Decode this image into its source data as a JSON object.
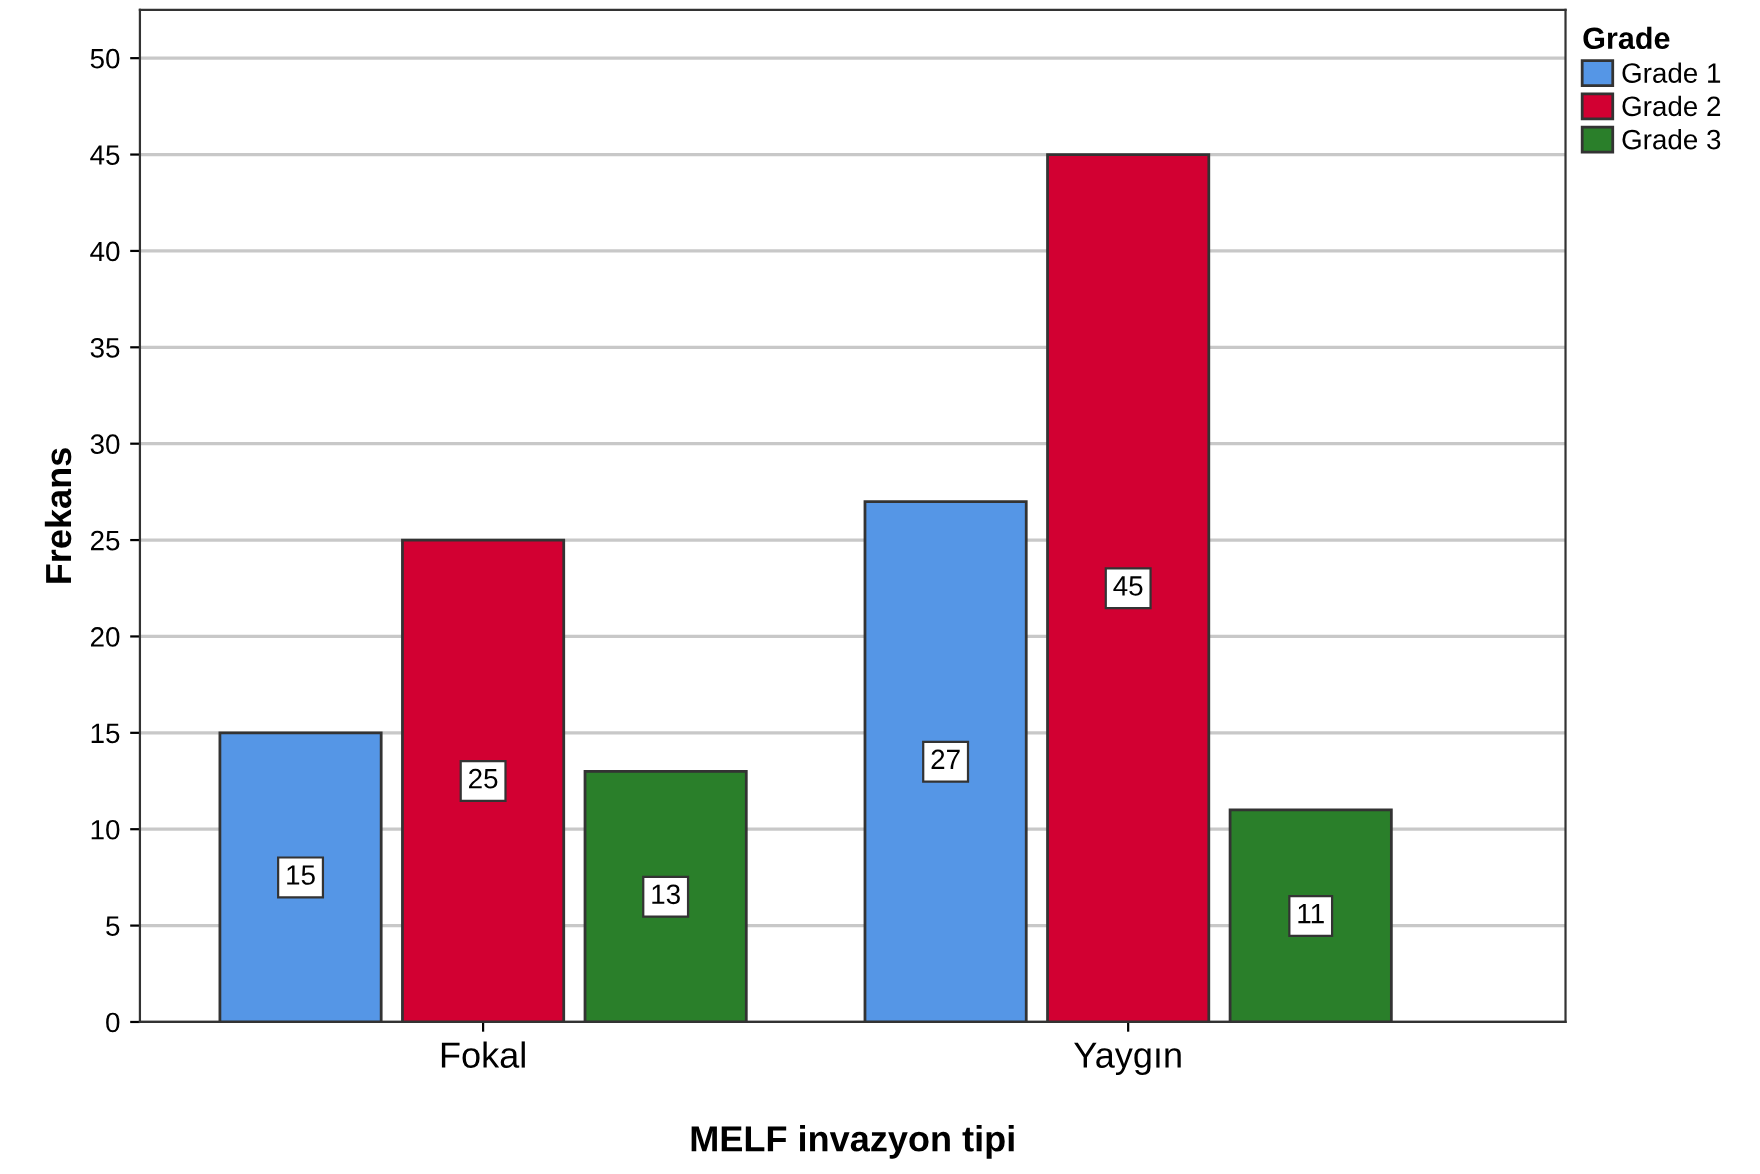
{
  "chart_data": {
    "type": "bar",
    "xlabel": "MELF invazyon tipi",
    "ylabel": "Frekans",
    "legend_title": "Grade",
    "categories": [
      "Fokal",
      "Yaygın"
    ],
    "series": [
      {
        "name": "Grade 1",
        "color": "#5596e6",
        "values": [
          15,
          27
        ]
      },
      {
        "name": "Grade 2",
        "color": "#d20032",
        "values": [
          25,
          45
        ]
      },
      {
        "name": "Grade 3",
        "color": "#2a7f2a",
        "values": [
          13,
          11
        ]
      }
    ],
    "ylim": [
      0,
      52.5
    ],
    "yticks": [
      0,
      5,
      10,
      15,
      20,
      25,
      30,
      35,
      40,
      45,
      50
    ],
    "grid": "y",
    "legend": "top right",
    "data_labels": true
  }
}
